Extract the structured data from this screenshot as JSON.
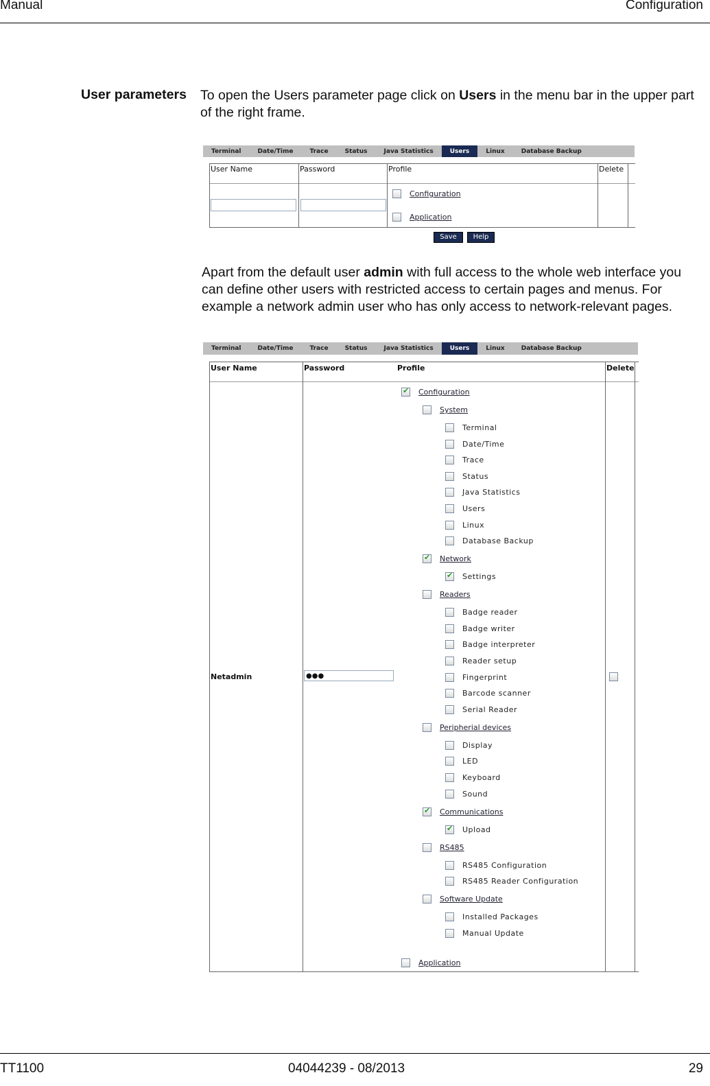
{
  "header": {
    "left": "Manual",
    "right": "Configuration"
  },
  "footer": {
    "left": "TT1100",
    "center": "04044239 - 08/2013",
    "right": "29"
  },
  "section_title": "User parameters",
  "para1": {
    "before": "To open the Users parameter page click on ",
    "bold": "Users",
    "after": " in the menu bar in the upper part of the right frame."
  },
  "para2": {
    "before": "Apart from the default user ",
    "bold": "admin",
    "after": " with full access to the whole web interface you can define other users with restricted access to certain pages and menus. For example a network admin user who has only access to network-relevant pages."
  },
  "tabs": [
    "Terminal",
    "Date/Time",
    "Trace",
    "Status",
    "Java Statistics",
    "Users",
    "Linux",
    "Database Backup"
  ],
  "active_tab": "Users",
  "columns": {
    "user": "User Name",
    "password": "Password",
    "profile": "Profile",
    "delete": "Delete"
  },
  "shot1": {
    "profile": [
      {
        "label": "Configuration",
        "checked": false
      },
      {
        "label": "Application",
        "checked": false
      }
    ],
    "save": "Save",
    "help": "Help"
  },
  "shot2": {
    "user": "Netadmin",
    "password": "●●●",
    "delete_checked": false,
    "profile": [
      {
        "label": "Configuration",
        "level": 0,
        "checked": true
      },
      {
        "label": "System",
        "level": 1,
        "checked": false
      },
      {
        "label": "Terminal",
        "level": 2,
        "checked": false
      },
      {
        "label": "Date/Time",
        "level": 2,
        "checked": false
      },
      {
        "label": "Trace",
        "level": 2,
        "checked": false
      },
      {
        "label": "Status",
        "level": 2,
        "checked": false
      },
      {
        "label": "Java Statistics",
        "level": 2,
        "checked": false
      },
      {
        "label": "Users",
        "level": 2,
        "checked": false
      },
      {
        "label": "Linux",
        "level": 2,
        "checked": false
      },
      {
        "label": "Database Backup",
        "level": 2,
        "checked": false
      },
      {
        "label": "Network",
        "level": 1,
        "checked": true
      },
      {
        "label": "Settings",
        "level": 2,
        "checked": true
      },
      {
        "label": "Readers",
        "level": 1,
        "checked": false
      },
      {
        "label": "Badge reader",
        "level": 2,
        "checked": false
      },
      {
        "label": "Badge writer",
        "level": 2,
        "checked": false
      },
      {
        "label": "Badge interpreter",
        "level": 2,
        "checked": false
      },
      {
        "label": "Reader setup",
        "level": 2,
        "checked": false
      },
      {
        "label": "Fingerprint",
        "level": 2,
        "checked": false
      },
      {
        "label": "Barcode scanner",
        "level": 2,
        "checked": false
      },
      {
        "label": "Serial Reader",
        "level": 2,
        "checked": false
      },
      {
        "label": "Peripherial devices",
        "level": 1,
        "checked": false
      },
      {
        "label": "Display",
        "level": 2,
        "checked": false
      },
      {
        "label": "LED",
        "level": 2,
        "checked": false
      },
      {
        "label": "Keyboard",
        "level": 2,
        "checked": false
      },
      {
        "label": "Sound",
        "level": 2,
        "checked": false
      },
      {
        "label": "Communications",
        "level": 1,
        "checked": true
      },
      {
        "label": "Upload",
        "level": 2,
        "checked": true
      },
      {
        "label": "RS485",
        "level": 1,
        "checked": false
      },
      {
        "label": "RS485 Configuration",
        "level": 2,
        "checked": false
      },
      {
        "label": "RS485 Reader Configuration",
        "level": 2,
        "checked": false
      },
      {
        "label": "Software Update",
        "level": 1,
        "checked": false
      },
      {
        "label": "Installed Packages",
        "level": 2,
        "checked": false
      },
      {
        "label": "Manual Update",
        "level": 2,
        "checked": false
      },
      {
        "label": "Application",
        "level": 0,
        "checked": false
      }
    ]
  }
}
